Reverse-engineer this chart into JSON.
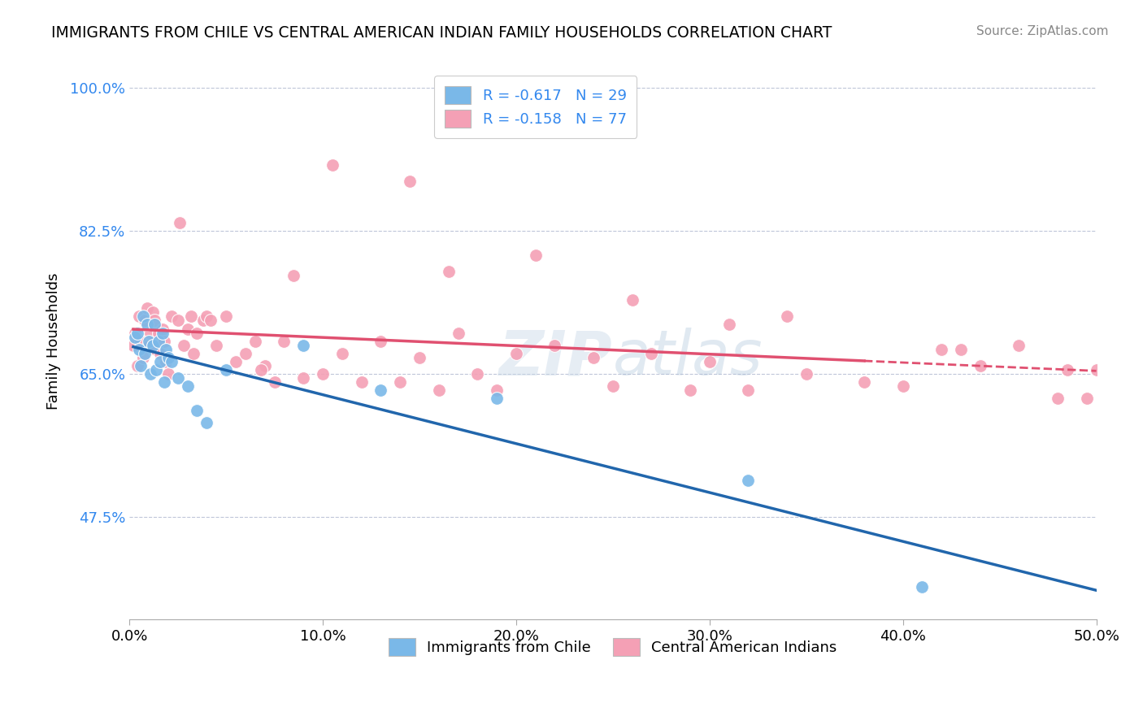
{
  "title": "IMMIGRANTS FROM CHILE VS CENTRAL AMERICAN INDIAN FAMILY HOUSEHOLDS CORRELATION CHART",
  "source_text": "Source: ZipAtlas.com",
  "xlabel": "",
  "ylabel": "Family Households",
  "xlim": [
    0.0,
    50.0
  ],
  "ylim": [
    35.0,
    103.0
  ],
  "yticks": [
    47.5,
    65.0,
    82.5,
    100.0
  ],
  "ytick_labels": [
    "47.5%",
    "65.0%",
    "82.5%",
    "100.0%"
  ],
  "xticks": [
    0.0,
    10.0,
    20.0,
    30.0,
    40.0,
    50.0
  ],
  "xtick_labels": [
    "0.0%",
    "10.0%",
    "20.0%",
    "30.0%",
    "40.0%",
    "50.0%"
  ],
  "blue_R": -0.617,
  "blue_N": 29,
  "pink_R": -0.158,
  "pink_N": 77,
  "blue_color": "#7ab8e8",
  "pink_color": "#f4a0b5",
  "blue_line_color": "#2166ac",
  "pink_line_color": "#e05070",
  "legend_R_color": "#3388ee",
  "background_color": "#ffffff",
  "blue_scatter_x": [
    0.3,
    0.4,
    0.5,
    0.6,
    0.7,
    0.8,
    0.9,
    1.0,
    1.1,
    1.2,
    1.3,
    1.4,
    1.5,
    1.6,
    1.7,
    1.8,
    1.9,
    2.0,
    2.2,
    2.5,
    3.0,
    3.5,
    4.0,
    5.0,
    9.0,
    13.0,
    19.0,
    32.0,
    41.0
  ],
  "blue_scatter_y": [
    69.5,
    70.0,
    68.0,
    66.0,
    72.0,
    67.5,
    71.0,
    69.0,
    65.0,
    68.5,
    71.0,
    65.5,
    69.0,
    66.5,
    70.0,
    64.0,
    68.0,
    67.0,
    66.5,
    64.5,
    63.5,
    60.5,
    59.0,
    65.5,
    68.5,
    63.0,
    62.0,
    52.0,
    39.0
  ],
  "pink_scatter_x": [
    0.2,
    0.3,
    0.4,
    0.5,
    0.6,
    0.7,
    0.8,
    0.9,
    1.0,
    1.1,
    1.2,
    1.3,
    1.4,
    1.5,
    1.6,
    1.7,
    1.8,
    1.9,
    2.0,
    2.2,
    2.5,
    2.8,
    3.0,
    3.2,
    3.5,
    3.8,
    4.0,
    4.5,
    5.0,
    5.5,
    6.0,
    6.5,
    7.0,
    7.5,
    8.0,
    9.0,
    10.0,
    11.0,
    12.0,
    13.0,
    14.0,
    15.0,
    16.0,
    17.0,
    18.0,
    19.0,
    20.0,
    22.0,
    24.0,
    25.0,
    27.0,
    29.0,
    30.0,
    32.0,
    35.0,
    38.0,
    40.0,
    42.0,
    44.0,
    46.0,
    48.0,
    50.0,
    14.5,
    21.0,
    10.5,
    26.0,
    31.0,
    4.2,
    2.6,
    16.5,
    8.5,
    34.0,
    3.3,
    6.8,
    43.0,
    48.5,
    49.5
  ],
  "pink_scatter_y": [
    68.5,
    70.0,
    66.0,
    72.0,
    69.0,
    67.0,
    71.5,
    73.0,
    68.5,
    70.0,
    72.5,
    71.5,
    68.0,
    70.0,
    67.5,
    70.5,
    69.0,
    66.5,
    65.0,
    72.0,
    71.5,
    68.5,
    70.5,
    72.0,
    70.0,
    71.5,
    72.0,
    68.5,
    72.0,
    66.5,
    67.5,
    69.0,
    66.0,
    64.0,
    69.0,
    64.5,
    65.0,
    67.5,
    64.0,
    69.0,
    64.0,
    67.0,
    63.0,
    70.0,
    65.0,
    63.0,
    67.5,
    68.5,
    67.0,
    63.5,
    67.5,
    63.0,
    66.5,
    63.0,
    65.0,
    64.0,
    63.5,
    68.0,
    66.0,
    68.5,
    62.0,
    65.5,
    88.5,
    79.5,
    90.5,
    74.0,
    71.0,
    71.5,
    83.5,
    77.5,
    77.0,
    72.0,
    67.5,
    65.5,
    68.0,
    65.5,
    62.0
  ],
  "pink_solid_end_x": 38.0,
  "blue_line_start_x": 0.2,
  "blue_line_end_x": 50.0,
  "pink_line_start_x": 0.2,
  "pink_line_end_x": 50.0
}
